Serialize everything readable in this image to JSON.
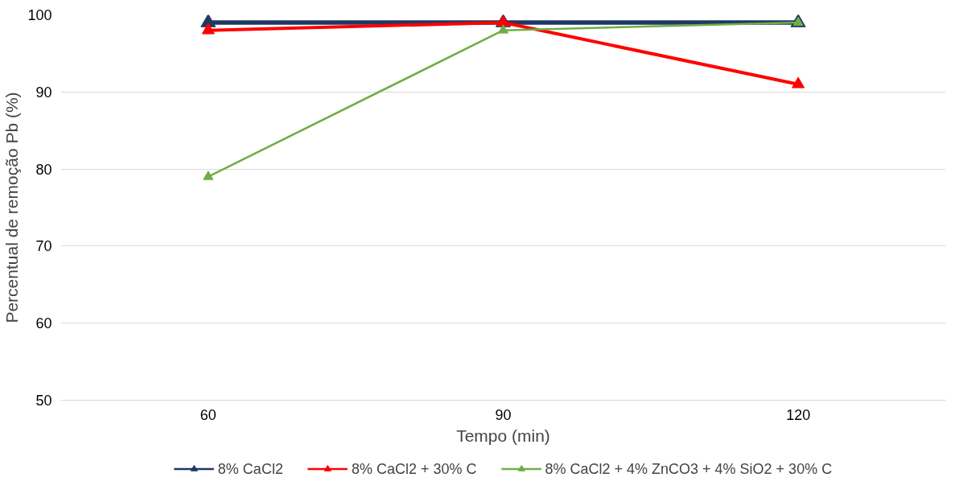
{
  "chart_data": {
    "type": "line",
    "xlabel": "Tempo (min)",
    "ylabel": "Percentual de remoção Pb (%)",
    "categories": [
      "60",
      "90",
      "120"
    ],
    "series": [
      {
        "name": "8% CaCl2",
        "color": "#1f3864",
        "values": [
          99,
          99,
          99
        ]
      },
      {
        "name": "8% CaCl2 + 30% C",
        "color": "#ff0000",
        "values": [
          98,
          99,
          91
        ]
      },
      {
        "name": "8% CaCl2 + 4% ZnCO3 + 4% SiO2 + 30% C",
        "color": "#70ad47",
        "values": [
          79,
          98,
          99
        ]
      }
    ],
    "ylim": [
      50,
      100
    ],
    "yticks": [
      50,
      60,
      70,
      80,
      90,
      100
    ],
    "grid": "y",
    "legend": "bottom",
    "marker": "triangle",
    "line_style": "solid"
  }
}
